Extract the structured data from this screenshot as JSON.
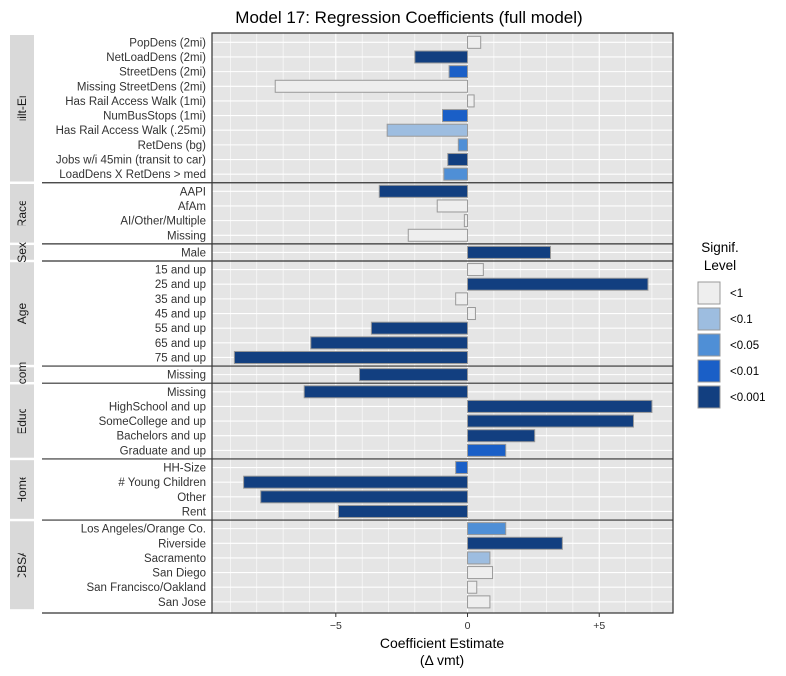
{
  "chart_data": {
    "type": "bar",
    "orientation": "horizontal",
    "title": "Model 17: Regression Coefficients (full model)",
    "xlabel": "Coefficient Estimate",
    "xlabel_sub": "(Δ vmt)",
    "xlim": [
      -9.7,
      7.8
    ],
    "xticks": [
      {
        "value": -5,
        "label": "−5"
      },
      {
        "value": 0,
        "label": "0"
      },
      {
        "value": 5,
        "label": "+5"
      }
    ],
    "grid": true,
    "legend": {
      "title_line1": "Signif.",
      "title_line2": "Level",
      "position": "right",
      "levels": [
        {
          "key": "<1",
          "label": "<1",
          "color": "#eeeeee"
        },
        {
          "key": "<0.1",
          "label": "<0.1",
          "color": "#9dbde0"
        },
        {
          "key": "<0.05",
          "label": "<0.05",
          "color": "#4f8fd6"
        },
        {
          "key": "<0.01",
          "label": "<0.01",
          "color": "#1a5fc7"
        },
        {
          "key": "<0.001",
          "label": "<0.001",
          "color": "#123f80"
        }
      ]
    },
    "groups": [
      {
        "name": "Built-Env.",
        "items": [
          {
            "label": "PopDens (2mi)",
            "value": 0.5,
            "level": "<1"
          },
          {
            "label": "NetLoadDens (2mi)",
            "value": -2.0,
            "level": "<0.001"
          },
          {
            "label": "StreetDens (2mi)",
            "value": -0.7,
            "level": "<0.01"
          },
          {
            "label": "Missing StreetDens (2mi)",
            "value": -7.3,
            "level": "<1"
          },
          {
            "label": "Has Rail Access Walk (1mi)",
            "value": 0.25,
            "level": "<1"
          },
          {
            "label": "NumBusStops (1mi)",
            "value": -0.95,
            "level": "<0.01"
          },
          {
            "label": "Has Rail Access Walk (.25mi)",
            "value": -3.05,
            "level": "<0.1"
          },
          {
            "label": "RetDens (bg)",
            "value": -0.35,
            "level": "<0.05"
          },
          {
            "label": "Jobs w/i 45min (transit to car)",
            "value": -0.75,
            "level": "<0.001"
          },
          {
            "label": "LoadDens X RetDens > med",
            "value": -0.9,
            "level": "<0.05"
          }
        ]
      },
      {
        "name": "Race",
        "items": [
          {
            "label": "AAPI",
            "value": -3.35,
            "level": "<0.001"
          },
          {
            "label": "AfAm",
            "value": -1.15,
            "level": "<1"
          },
          {
            "label": "AI/Other/Multiple",
            "value": -0.12,
            "level": "<1"
          },
          {
            "label": "Missing",
            "value": -2.25,
            "level": "<1"
          }
        ]
      },
      {
        "name": "Sex",
        "items": [
          {
            "label": "Male",
            "value": 3.15,
            "level": "<0.001"
          }
        ]
      },
      {
        "name": "Age",
        "items": [
          {
            "label": "15 and up",
            "value": 0.6,
            "level": "<1"
          },
          {
            "label": "25 and up",
            "value": 6.85,
            "level": "<0.001"
          },
          {
            "label": "35 and up",
            "value": -0.45,
            "level": "<1"
          },
          {
            "label": "45 and up",
            "value": 0.3,
            "level": "<1"
          },
          {
            "label": "55 and up",
            "value": -3.65,
            "level": "<0.001"
          },
          {
            "label": "65 and up",
            "value": -5.95,
            "level": "<0.001"
          },
          {
            "label": "75 and up",
            "value": -8.85,
            "level": "<0.001"
          }
        ]
      },
      {
        "name": "Income",
        "items": [
          {
            "label": "Missing",
            "value": -4.1,
            "level": "<0.001"
          }
        ]
      },
      {
        "name": "Educ",
        "items": [
          {
            "label": "Missing",
            "value": -6.2,
            "level": "<0.001"
          },
          {
            "label": "HighSchool and up",
            "value": 7.0,
            "level": "<0.001"
          },
          {
            "label": "SomeCollege and up",
            "value": 6.3,
            "level": "<0.001"
          },
          {
            "label": "Bachelors and up",
            "value": 2.55,
            "level": "<0.001"
          },
          {
            "label": "Graduate and up",
            "value": 1.45,
            "level": "<0.01"
          }
        ]
      },
      {
        "name": "Home",
        "items": [
          {
            "label": "HH-Size",
            "value": -0.45,
            "level": "<0.01"
          },
          {
            "label": "# Young Children",
            "value": -8.5,
            "level": "<0.001"
          },
          {
            "label": "Other",
            "value": -7.85,
            "level": "<0.001"
          },
          {
            "label": "Rent",
            "value": -4.9,
            "level": "<0.001"
          }
        ]
      },
      {
        "name": "CBSA",
        "items": [
          {
            "label": "Los Angeles/Orange Co.",
            "value": 1.45,
            "level": "<0.05"
          },
          {
            "label": "Riverside",
            "value": 3.6,
            "level": "<0.001"
          },
          {
            "label": "Sacramento",
            "value": 0.85,
            "level": "<0.1"
          },
          {
            "label": "San Diego",
            "value": 0.95,
            "level": "<1"
          },
          {
            "label": "San Francisco/Oakland",
            "value": 0.35,
            "level": "<1"
          },
          {
            "label": "San Jose",
            "value": 0.85,
            "level": "<1"
          }
        ]
      }
    ]
  }
}
